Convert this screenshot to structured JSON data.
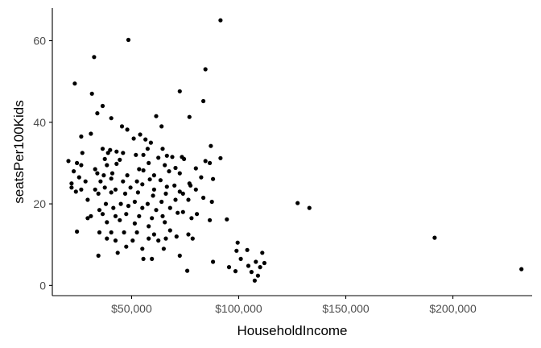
{
  "chart_data": {
    "type": "scatter",
    "title": "",
    "xlabel": "HouseholdIncome",
    "ylabel": "seatsPer100Kids",
    "xlim": [
      13000,
      237000
    ],
    "ylim": [
      -2.5,
      68
    ],
    "x_ticks": [
      50000,
      100000,
      150000,
      200000
    ],
    "x_tick_labels": [
      "$50,000",
      "$100,000",
      "$150,000",
      "$200,000"
    ],
    "y_ticks": [
      0,
      20,
      40,
      60
    ],
    "y_tick_labels": [
      "0",
      "20",
      "40",
      "60"
    ],
    "grid": false,
    "legend": "none",
    "point_color": "#000000",
    "points": [
      [
        91500,
        65
      ],
      [
        48500,
        60.2
      ],
      [
        32500,
        56
      ],
      [
        84500,
        53
      ],
      [
        23500,
        49.5
      ],
      [
        31500,
        47
      ],
      [
        72500,
        47.6
      ],
      [
        83500,
        45.2
      ],
      [
        36500,
        44
      ],
      [
        34000,
        42.2
      ],
      [
        77000,
        41.3
      ],
      [
        61500,
        41.5
      ],
      [
        40500,
        41
      ],
      [
        45500,
        39
      ],
      [
        48000,
        38.2
      ],
      [
        64000,
        39
      ],
      [
        26500,
        36.5
      ],
      [
        31000,
        37.2
      ],
      [
        54000,
        37
      ],
      [
        51000,
        36
      ],
      [
        56500,
        35.8
      ],
      [
        59000,
        35
      ],
      [
        87000,
        34.2
      ],
      [
        36500,
        33.5
      ],
      [
        40000,
        33.2
      ],
      [
        57500,
        33.5
      ],
      [
        64500,
        33.5
      ],
      [
        73500,
        31.5
      ],
      [
        27000,
        32.5
      ],
      [
        39000,
        32.5
      ],
      [
        43000,
        32.8
      ],
      [
        46000,
        32.5
      ],
      [
        52000,
        32
      ],
      [
        55500,
        32
      ],
      [
        69000,
        31.5
      ],
      [
        20500,
        30.5
      ],
      [
        24500,
        30
      ],
      [
        26500,
        29.5
      ],
      [
        37500,
        31
      ],
      [
        44500,
        30.8
      ],
      [
        62500,
        31.3
      ],
      [
        66500,
        31.8
      ],
      [
        74500,
        31
      ],
      [
        84500,
        30.5
      ],
      [
        91500,
        31.2
      ],
      [
        33000,
        28.5
      ],
      [
        38500,
        29.5
      ],
      [
        43000,
        29.8
      ],
      [
        53500,
        28.5
      ],
      [
        58000,
        30
      ],
      [
        65500,
        29.5
      ],
      [
        70500,
        28.8
      ],
      [
        80000,
        28.7
      ],
      [
        86500,
        30
      ],
      [
        88000,
        26.1
      ],
      [
        23000,
        28
      ],
      [
        25500,
        26.5
      ],
      [
        34000,
        27.5
      ],
      [
        37000,
        27
      ],
      [
        41000,
        27.5
      ],
      [
        48000,
        27
      ],
      [
        55500,
        28.2
      ],
      [
        60500,
        27
      ],
      [
        67500,
        28
      ],
      [
        72500,
        27.5
      ],
      [
        22000,
        25
      ],
      [
        28500,
        25.5
      ],
      [
        35500,
        25.5
      ],
      [
        40500,
        26.2
      ],
      [
        46000,
        25.5
      ],
      [
        52500,
        25.5
      ],
      [
        58500,
        26
      ],
      [
        63500,
        25.8
      ],
      [
        70000,
        24.5
      ],
      [
        77000,
        25
      ],
      [
        82500,
        26.5
      ],
      [
        22000,
        24
      ],
      [
        26500,
        23.5
      ],
      [
        33000,
        23.5
      ],
      [
        37500,
        24
      ],
      [
        42500,
        23.5
      ],
      [
        49500,
        24
      ],
      [
        55000,
        24.8
      ],
      [
        60500,
        23.5
      ],
      [
        66500,
        24.2
      ],
      [
        72500,
        23
      ],
      [
        77500,
        24.5
      ],
      [
        24000,
        23
      ],
      [
        34500,
        22.5
      ],
      [
        40500,
        22.8
      ],
      [
        47000,
        22.5
      ],
      [
        53000,
        22.8
      ],
      [
        60000,
        22
      ],
      [
        66000,
        22.5
      ],
      [
        74000,
        22.5
      ],
      [
        80000,
        23.5
      ],
      [
        83500,
        21.5
      ],
      [
        29500,
        21
      ],
      [
        38000,
        20
      ],
      [
        45000,
        20
      ],
      [
        51500,
        20.5
      ],
      [
        57500,
        20
      ],
      [
        64000,
        20.5
      ],
      [
        70500,
        21
      ],
      [
        76500,
        21
      ],
      [
        87500,
        20.5
      ],
      [
        127500,
        20.2
      ],
      [
        133000,
        19
      ],
      [
        35000,
        18.5
      ],
      [
        41500,
        19
      ],
      [
        48500,
        19.5
      ],
      [
        55000,
        19
      ],
      [
        61500,
        18.5
      ],
      [
        68000,
        19
      ],
      [
        74000,
        18
      ],
      [
        80500,
        17.5
      ],
      [
        31000,
        17
      ],
      [
        36500,
        17.5
      ],
      [
        42500,
        17
      ],
      [
        47500,
        17.5
      ],
      [
        53500,
        17
      ],
      [
        59500,
        16.5
      ],
      [
        64500,
        17
      ],
      [
        71500,
        17.8
      ],
      [
        78000,
        16.5
      ],
      [
        86500,
        16
      ],
      [
        94500,
        16.2
      ],
      [
        29500,
        16.5
      ],
      [
        38500,
        15.5
      ],
      [
        44500,
        16
      ],
      [
        51500,
        15.2
      ],
      [
        58000,
        14.5
      ],
      [
        65500,
        15.5
      ],
      [
        24500,
        13.2
      ],
      [
        35000,
        13
      ],
      [
        40500,
        13
      ],
      [
        46500,
        13
      ],
      [
        52500,
        13
      ],
      [
        60500,
        12.5
      ],
      [
        68000,
        13.5
      ],
      [
        76500,
        12.5
      ],
      [
        38500,
        11.5
      ],
      [
        42500,
        11
      ],
      [
        50500,
        11
      ],
      [
        58000,
        11.5
      ],
      [
        62500,
        11
      ],
      [
        66000,
        11.5
      ],
      [
        71000,
        12
      ],
      [
        78500,
        11.5
      ],
      [
        99500,
        10.5
      ],
      [
        191500,
        11.7
      ],
      [
        47500,
        9.5
      ],
      [
        55000,
        9
      ],
      [
        65000,
        9
      ],
      [
        99000,
        8.5
      ],
      [
        104000,
        8.7
      ],
      [
        111000,
        8
      ],
      [
        34500,
        7.3
      ],
      [
        43500,
        8
      ],
      [
        55500,
        6.5
      ],
      [
        59500,
        6.5
      ],
      [
        72500,
        7.3
      ],
      [
        88000,
        5.8
      ],
      [
        101000,
        6.5
      ],
      [
        108000,
        5.8
      ],
      [
        112000,
        5.5
      ],
      [
        110000,
        4.5
      ],
      [
        95500,
        4.5
      ],
      [
        98500,
        3.5
      ],
      [
        104500,
        4.8
      ],
      [
        76000,
        3.6
      ],
      [
        232000,
        4
      ],
      [
        106000,
        3.3
      ],
      [
        109000,
        2.4
      ],
      [
        107500,
        1.2
      ]
    ]
  }
}
